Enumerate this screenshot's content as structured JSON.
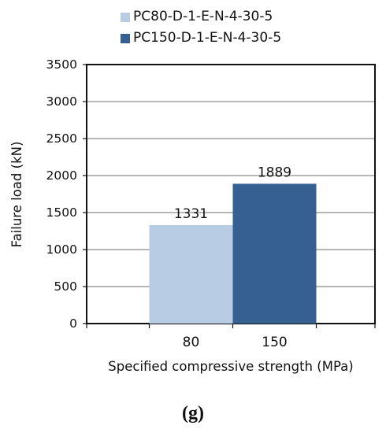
{
  "chart_data": {
    "type": "bar",
    "categories": [
      "80",
      "150"
    ],
    "series": [
      {
        "name": "PC80-D-1-E-N-4-30-5",
        "category": "80",
        "value": 1331,
        "color": "#b8cce4"
      },
      {
        "name": "PC150-D-1-E-N-4-30-5",
        "category": "150",
        "value": 1889,
        "color": "#376092"
      }
    ],
    "data_labels": [
      "1331",
      "1889"
    ],
    "xlabel": "Specified compressive strength (MPa)",
    "ylabel": "Failure load (kN)",
    "ylim": [
      0,
      3500
    ],
    "yticks": [
      0,
      500,
      1000,
      1500,
      2000,
      2500,
      3000,
      3500
    ],
    "grid": true,
    "legend_position": "top"
  },
  "caption": "(g)"
}
